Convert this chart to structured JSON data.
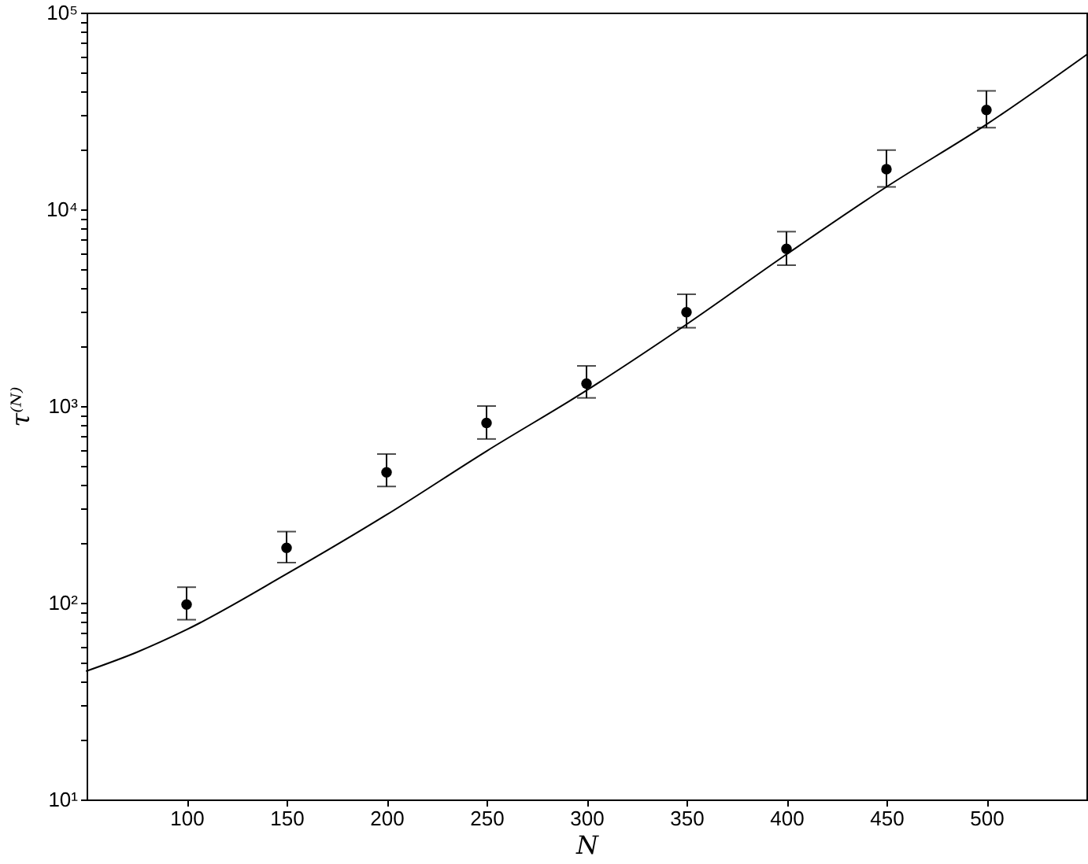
{
  "chart_data": {
    "type": "scatter",
    "xlabel": "N",
    "ylabel": "τ⁽ᴺ⁾",
    "log": "y",
    "marker": "circle",
    "xlim": [
      50,
      550
    ],
    "xticks": [
      100,
      150,
      200,
      250,
      300,
      350,
      400,
      450,
      500
    ],
    "ylim": [
      10,
      100000
    ],
    "yticks": [
      {
        "value": 10,
        "label": "10¹"
      },
      {
        "value": 20,
        "label": null
      },
      {
        "value": 30,
        "label": null
      },
      {
        "value": 40,
        "label": null
      },
      {
        "value": 50,
        "label": null
      },
      {
        "value": 60,
        "label": null
      },
      {
        "value": 70,
        "label": null
      },
      {
        "value": 80,
        "label": null
      },
      {
        "value": 90,
        "label": null
      },
      {
        "value": 100,
        "label": "10²"
      },
      {
        "value": 200,
        "label": null
      },
      {
        "value": 300,
        "label": null
      },
      {
        "value": 400,
        "label": null
      },
      {
        "value": 500,
        "label": null
      },
      {
        "value": 600,
        "label": null
      },
      {
        "value": 700,
        "label": null
      },
      {
        "value": 800,
        "label": null
      },
      {
        "value": 900,
        "label": null
      },
      {
        "value": 1000,
        "label": "10³"
      },
      {
        "value": 2000,
        "label": null
      },
      {
        "value": 3000,
        "label": null
      },
      {
        "value": 4000,
        "label": null
      },
      {
        "value": 5000,
        "label": null
      },
      {
        "value": 6000,
        "label": null
      },
      {
        "value": 7000,
        "label": null
      },
      {
        "value": 8000,
        "label": null
      },
      {
        "value": 9000,
        "label": null
      },
      {
        "value": 10000,
        "label": "10⁴"
      },
      {
        "value": 20000,
        "label": null
      },
      {
        "value": 30000,
        "label": null
      },
      {
        "value": 40000,
        "label": null
      },
      {
        "value": 50000,
        "label": null
      },
      {
        "value": 60000,
        "label": null
      },
      {
        "value": 70000,
        "label": null
      },
      {
        "value": 80000,
        "label": null
      },
      {
        "value": 90000,
        "label": null
      },
      {
        "value": 100000,
        "label": "10⁵"
      }
    ],
    "series": [
      {
        "color": "#000000",
        "x": [
          100,
          150,
          200,
          250,
          300,
          350,
          400,
          450,
          500
        ],
        "values": [
          98,
          190,
          460,
          820,
          1300,
          3000,
          6300,
          16000,
          32000
        ],
        "errors": [
          [
            82,
            120
          ],
          [
            160,
            230
          ],
          [
            390,
            570
          ],
          [
            680,
            1000
          ],
          [
            1100,
            1600
          ],
          [
            2500,
            3700
          ],
          [
            5200,
            7700
          ],
          [
            13000,
            20000
          ],
          [
            26000,
            40000
          ]
        ]
      },
      {
        "type": "line",
        "color": "#000000",
        "marker": "none",
        "line_style": "solid",
        "x": [
          50,
          75,
          100,
          150,
          200,
          250,
          300,
          350,
          400,
          450,
          500,
          550
        ],
        "values": [
          45,
          56,
          73,
          140,
          280,
          590,
          1200,
          2600,
          5900,
          13000,
          27000,
          61000
        ]
      }
    ]
  }
}
